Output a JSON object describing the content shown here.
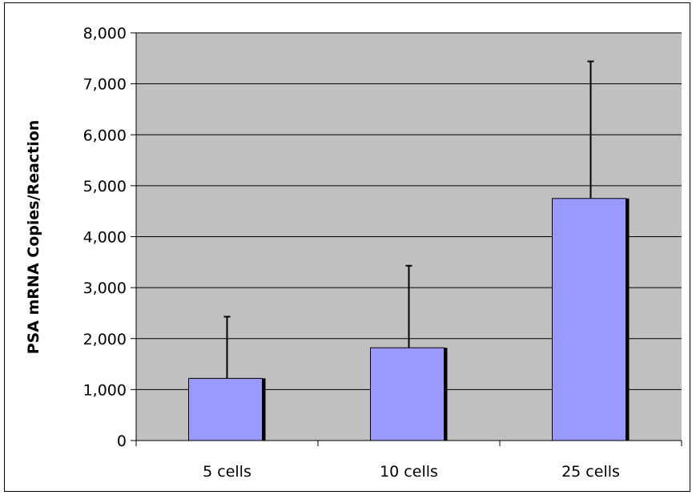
{
  "chart_data": {
    "type": "bar",
    "title": "",
    "xlabel": "",
    "ylabel": "PSA mRNA Copies/Reaction",
    "categories": [
      "5 cells",
      "10 cells",
      "25 cells"
    ],
    "series": [
      {
        "values": [
          1220,
          1820,
          4750
        ],
        "error_plus": [
          1210,
          1610,
          2690
        ]
      }
    ],
    "ylim": [
      0,
      8000
    ],
    "yticks": [
      0,
      1000,
      2000,
      3000,
      4000,
      5000,
      6000,
      7000,
      8000
    ],
    "ytick_labels": [
      "0",
      "1,000",
      "2,000",
      "3,000",
      "4,000",
      "5,000",
      "6,000",
      "7,000",
      "8,000"
    ],
    "grid": true,
    "legend": "none",
    "colors": {
      "plot_background": "#c0c0c0",
      "bar_fill": "#9999ff",
      "bar_shadow": "#000000",
      "gridline": "#000000"
    }
  }
}
